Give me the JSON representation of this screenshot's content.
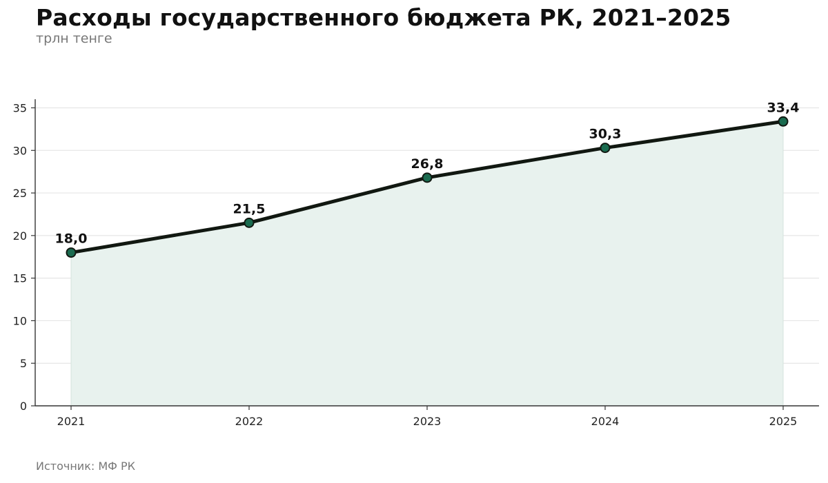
{
  "header": {
    "title": "Расходы государственного бюджета РК, 2021–2025",
    "subtitle": "трлн тенге"
  },
  "footer": {
    "source": "Источник: МФ РК"
  },
  "colors": {
    "line": "#111811",
    "marker": "#1a6b4f",
    "area": "#e8f2ee",
    "grid": "#e6e6e6",
    "axis": "#333333"
  },
  "chart_data": {
    "type": "area",
    "x": [
      "2021",
      "2022",
      "2023",
      "2024",
      "2025"
    ],
    "series": [
      {
        "values": [
          18.0,
          21.5,
          26.8,
          30.3,
          33.4
        ],
        "labels": [
          "18,0",
          "21,5",
          "26,8",
          "30,3",
          "33,4"
        ]
      }
    ],
    "title": "Расходы государственного бюджета РК, 2021–2025",
    "subtitle": "трлн тенге",
    "xlabel": "",
    "ylabel": "",
    "ylim": [
      0,
      36
    ],
    "yticks": [
      0,
      5,
      10,
      15,
      20,
      25,
      30,
      35
    ],
    "grid": true,
    "legend": "none",
    "markers": true
  }
}
